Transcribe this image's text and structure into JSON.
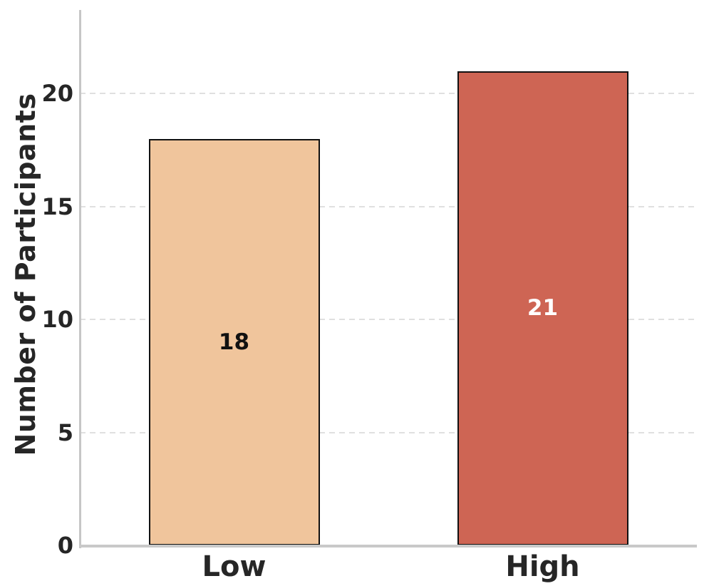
{
  "chart_data": {
    "type": "bar",
    "categories": [
      "Low",
      "High"
    ],
    "values": [
      18,
      21
    ],
    "bar_labels": [
      "18",
      "21"
    ],
    "bar_colors": [
      "#f0c59c",
      "#ce6554"
    ],
    "bar_label_colors": [
      "#111111",
      "#ffffff"
    ],
    "title": "",
    "xlabel": "",
    "ylabel": "Number of Participants",
    "yticks": [
      0,
      5,
      10,
      15,
      20
    ],
    "ylim": [
      0,
      23.7
    ],
    "grid": "horizontal-dashed",
    "legend": "none"
  },
  "style": {
    "background": "#ffffff",
    "grid_color": "#e0e0e0",
    "axis_color": "#c9c9c9",
    "text_color": "#262626",
    "bar_edge_color": "#111111"
  }
}
